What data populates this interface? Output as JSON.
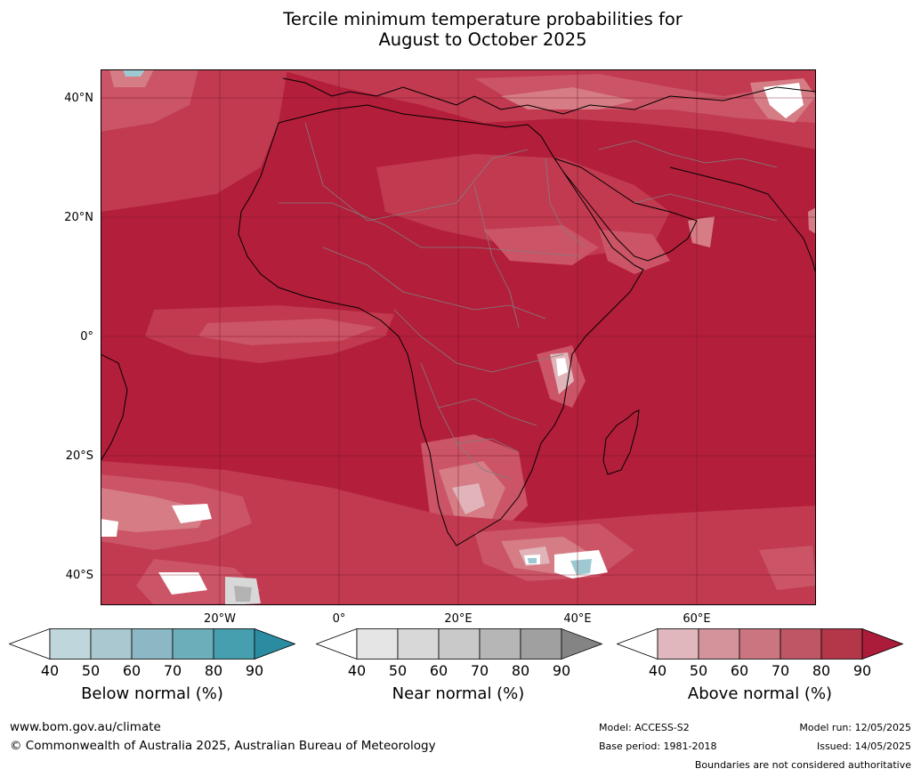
{
  "title": {
    "line1": "Tercile minimum temperature probabilities for",
    "line2": "August to October 2025"
  },
  "map": {
    "lat_labels": [
      "40°N",
      "20°N",
      "0°",
      "20°S",
      "40°S"
    ],
    "lon_labels": [
      "20°W",
      "0°",
      "20°E",
      "40°E",
      "60°E"
    ],
    "colors": {
      "ocean_base": "#b31e3b",
      "above_80": "#c13a50",
      "above_70": "#cb5466",
      "above_60": "#d57c85",
      "above_50": "#e0b4b9",
      "white": "#ffffff",
      "below_blue": "#9fc9d2",
      "near_grey": "#b3b3b3",
      "coast": "#000000",
      "borders": "#808080"
    }
  },
  "colorbars": [
    {
      "label": "Below normal (%)",
      "ticks": [
        "40",
        "50",
        "60",
        "70",
        "80",
        "90"
      ],
      "colors": [
        "#ffffff",
        "#bfd6dc",
        "#a9c8cf",
        "#8bb8c4",
        "#6caeba",
        "#469fae",
        "#2b8ca1"
      ]
    },
    {
      "label": "Near normal (%)",
      "ticks": [
        "40",
        "50",
        "60",
        "70",
        "80",
        "90"
      ],
      "colors": [
        "#ffffff",
        "#e5e5e5",
        "#d8d8d8",
        "#c9c9c9",
        "#b6b6b6",
        "#a0a0a0",
        "#848484"
      ]
    },
    {
      "label": "Above normal (%)",
      "ticks": [
        "40",
        "50",
        "60",
        "70",
        "80",
        "90"
      ],
      "colors": [
        "#ffffff",
        "#e0b7bc",
        "#d3939b",
        "#cb7580",
        "#bf5666",
        "#b43649",
        "#ab1b3a"
      ]
    }
  ],
  "footer": {
    "url": "www.bom.gov.au/climate",
    "copyright": "© Commonwealth of Australia 2025, Australian Bureau of Meteorology",
    "model": "Model: ACCESS-S2",
    "base_period": "Base period: 1981-2018",
    "model_run": "Model run: 12/05/2025",
    "issued": "Issued: 14/05/2025",
    "boundaries": "Boundaries are not considered authoritative"
  }
}
